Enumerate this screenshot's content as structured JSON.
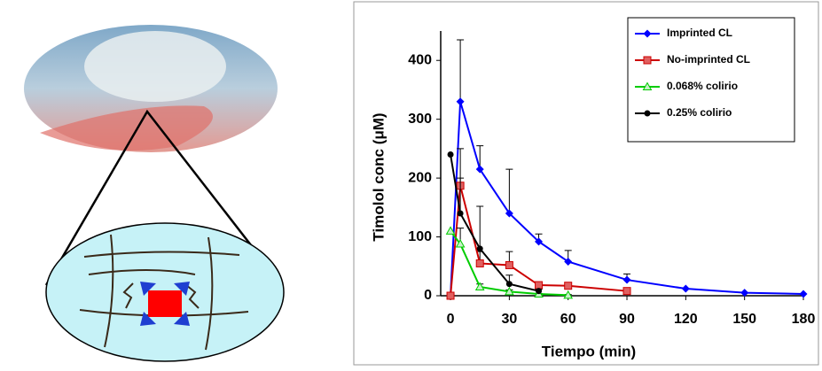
{
  "chart_data": {
    "type": "line",
    "xlabel": "Tiempo (min)",
    "ylabel": "Timolol conc (μM)",
    "xlim": [
      -5,
      180
    ],
    "xticks": [
      0,
      30,
      60,
      90,
      120,
      150,
      180
    ],
    "ylim": [
      0,
      450
    ],
    "yticks": [
      0,
      100,
      200,
      300,
      400
    ],
    "legend": "upper right",
    "series": [
      {
        "name": "Imprinted CL",
        "color": "#0000ff",
        "marker": "diamond",
        "x": [
          0,
          5,
          15,
          30,
          45,
          60,
          90,
          120,
          150,
          180
        ],
        "values": [
          0,
          330,
          215,
          140,
          92,
          58,
          27,
          12,
          5,
          3
        ],
        "errors": [
          0,
          105,
          40,
          75,
          13,
          19,
          10,
          0,
          0,
          0
        ]
      },
      {
        "name": "No-imprinted CL",
        "color": "#cc0000",
        "marker": "square",
        "x": [
          0,
          5,
          15,
          30,
          45,
          60,
          90
        ],
        "values": [
          0,
          187,
          55,
          52,
          18,
          17,
          8
        ],
        "errors": [
          0,
          63,
          20,
          23,
          3,
          3,
          2
        ]
      },
      {
        "name": "0.068% colirio",
        "color": "#00cc00",
        "marker": "triangle",
        "x": [
          0,
          5,
          15,
          30,
          45,
          60
        ],
        "values": [
          110,
          88,
          15,
          7,
          3,
          1
        ],
        "errors": [
          0,
          27,
          5,
          3,
          1,
          1
        ]
      },
      {
        "name": "0.25% colirio",
        "color": "#000000",
        "marker": "circle",
        "x": [
          0,
          5,
          15,
          30,
          45
        ],
        "values": [
          240,
          140,
          80,
          20,
          8
        ],
        "errors": [
          0,
          60,
          72,
          15,
          3
        ]
      }
    ]
  }
}
